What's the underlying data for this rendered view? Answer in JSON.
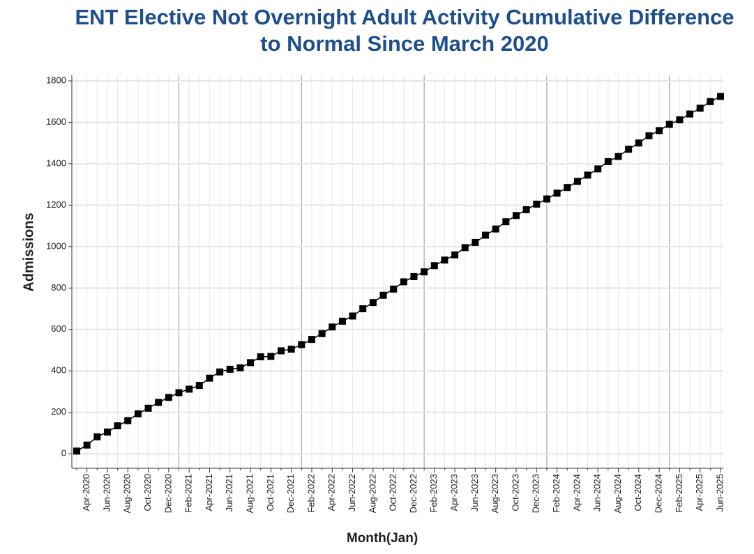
{
  "chart_data": {
    "type": "line",
    "title": "ENT Elective Not Overnight Adult Activity Cumulative Difference to Normal Since March 2020",
    "x_label": "Month(Jan)",
    "y_label": "Admissions",
    "categories": [
      null,
      "Apr-2020",
      null,
      "Jun-2020",
      null,
      "Aug-2020",
      null,
      "Oct-2020",
      null,
      "Dec-2020",
      null,
      "Feb-2021",
      null,
      "Apr-2021",
      null,
      "Jun-2021",
      null,
      "Aug-2021",
      null,
      "Oct-2021",
      null,
      "Dec-2021",
      null,
      "Feb-2022",
      null,
      "Apr-2022",
      null,
      "Jun-2022",
      null,
      "Aug-2022",
      null,
      "Oct-2022",
      null,
      "Dec-2022",
      null,
      "Feb-2023",
      null,
      "Apr-2023",
      null,
      "Jun-2023",
      null,
      "Aug-2023",
      null,
      "Oct-2023",
      null,
      "Dec-2023",
      null,
      "Feb-2024",
      null,
      "Apr-2024",
      null,
      "Jun-2024",
      null,
      "Aug-2024",
      null,
      "Oct-2024",
      null,
      "Dec-2024",
      null,
      "Feb-2025",
      null,
      "Apr-2025",
      null,
      "Jun-2025"
    ],
    "series": [
      {
        "name": "Admissions",
        "color": "#000000",
        "values": [
          13,
          42,
          82,
          105,
          135,
          160,
          193,
          220,
          248,
          272,
          295,
          312,
          330,
          365,
          395,
          408,
          415,
          440,
          468,
          470,
          497,
          505,
          527,
          552,
          580,
          612,
          640,
          665,
          700,
          730,
          765,
          795,
          830,
          855,
          878,
          908,
          935,
          960,
          995,
          1020,
          1055,
          1085,
          1120,
          1150,
          1178,
          1205,
          1230,
          1258,
          1285,
          1315,
          1345,
          1375,
          1410,
          1435,
          1470,
          1500,
          1535,
          1560,
          1590,
          1612,
          1640,
          1668,
          1700,
          1725
        ]
      }
    ],
    "ylim": [
      -70,
      1827
    ],
    "yticks": [
      0,
      200,
      400,
      600,
      800,
      1000,
      1200,
      1400,
      1600,
      1800
    ],
    "grid": true
  }
}
